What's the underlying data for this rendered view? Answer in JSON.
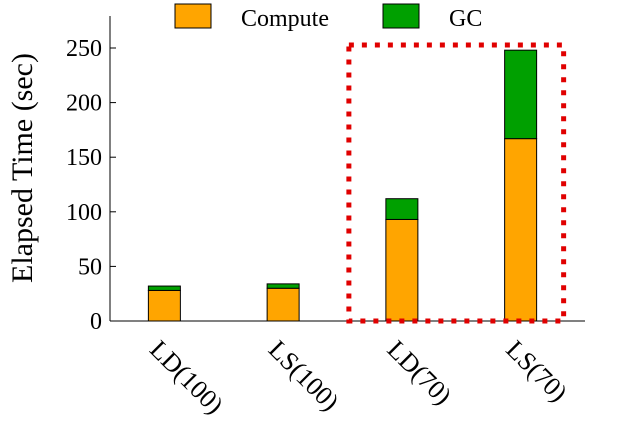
{
  "chart_data": {
    "type": "bar",
    "stacked": true,
    "categories": [
      "LD(100)",
      "LS(100)",
      "LD(70)",
      "LS(70)"
    ],
    "series": [
      {
        "name": "Compute",
        "color": "#FFA500",
        "values": [
          28,
          30,
          93,
          167
        ]
      },
      {
        "name": "GC",
        "color": "#00A000",
        "values": [
          4,
          4,
          19,
          81
        ]
      }
    ],
    "ylabel": "Elapsed Time (sec)",
    "xlabel": "",
    "ylim": [
      0,
      250
    ],
    "yticks": [
      "0",
      "50",
      "100",
      "150",
      "200",
      "250"
    ],
    "legend_position": "top",
    "grid": false,
    "highlight": {
      "categories": [
        "LD(70)",
        "LS(70)"
      ],
      "style": "dotted",
      "color": "#E00000"
    }
  }
}
